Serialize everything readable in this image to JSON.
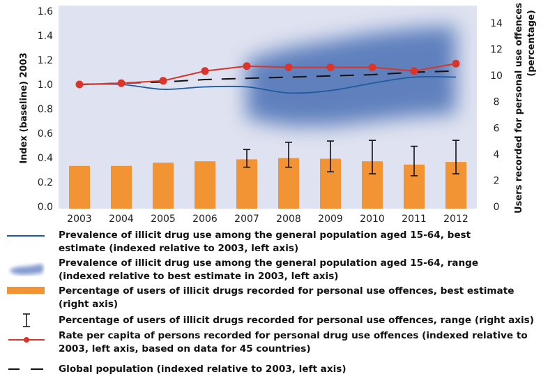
{
  "chart_data": {
    "type": "bar",
    "title": "",
    "categories": [
      "2003",
      "2004",
      "2005",
      "2006",
      "2007",
      "2008",
      "2009",
      "2010",
      "2011",
      "2012"
    ],
    "xlabel": "",
    "ylabel": "Index (baseline) 2003",
    "y2label": "Users recorded for personal use offences (percentage)",
    "y2label_lines": [
      "Users recorded for personal use offences",
      "(percentage)"
    ],
    "ylim": [
      0,
      1.6
    ],
    "yticks": [
      "0.0",
      "0.2",
      "0.4",
      "0.6",
      "0.8",
      "1.0",
      "1.2",
      "1.4",
      "1.6"
    ],
    "y2lim": [
      0,
      15
    ],
    "y2ticks": [
      "0",
      "2",
      "4",
      "6",
      "8",
      "10",
      "12",
      "14"
    ],
    "grid": false,
    "legend_position": "bottom",
    "series": [
      {
        "name": "Prevalence of illicit drug use among the general population aged 15-64, best estimate (indexed relative to 2003, left axis)",
        "type": "line",
        "axis": "left",
        "color": "#1f5a9e",
        "values": [
          1.0,
          1.0,
          0.96,
          0.98,
          0.98,
          0.93,
          0.95,
          1.01,
          1.06,
          1.06
        ]
      },
      {
        "name": "Prevalence of illicit drug use among the general population aged 15-64, range (indexed relative to best estimate in 2003, left axis)",
        "type": "area",
        "axis": "left",
        "color": "#4a6fb5",
        "lower": [
          null,
          null,
          null,
          null,
          0.72,
          0.66,
          0.66,
          0.7,
          0.74,
          0.76
        ],
        "upper": [
          null,
          null,
          null,
          null,
          1.2,
          1.3,
          1.36,
          1.42,
          1.46,
          1.48
        ]
      },
      {
        "name": "Percentage of users of illicit drugs recorded for personal use offences, best estimate (right axis)",
        "type": "bar",
        "axis": "right",
        "color": "#f29433",
        "values": [
          3.1,
          3.1,
          3.35,
          3.45,
          3.6,
          3.7,
          3.65,
          3.45,
          3.2,
          3.4
        ]
      },
      {
        "name": "Percentage of users of illicit drugs recorded for personal use offences, range (right axis)",
        "type": "errorbar",
        "axis": "right",
        "color": "#111111",
        "low": [
          null,
          null,
          null,
          null,
          3.0,
          3.0,
          2.65,
          2.5,
          2.35,
          2.5
        ],
        "high": [
          null,
          null,
          null,
          null,
          4.35,
          4.9,
          5.0,
          5.05,
          4.6,
          5.05
        ]
      },
      {
        "name": "Rate per capita of persons recorded for personal drug use offences (indexed relative to 2003, left axis, based on data for 45 countries)",
        "type": "line",
        "axis": "left",
        "color": "#d9352a",
        "marker": "circle",
        "values": [
          1.0,
          1.01,
          1.03,
          1.11,
          1.15,
          1.14,
          1.14,
          1.14,
          1.11,
          1.17
        ]
      },
      {
        "name": "Global population (indexed relative to 2003, left axis)",
        "type": "line",
        "axis": "left",
        "color": "#111111",
        "dash": true,
        "values": [
          1.0,
          1.01,
          1.02,
          1.04,
          1.05,
          1.06,
          1.07,
          1.08,
          1.1,
          1.11
        ]
      }
    ]
  },
  "colors": {
    "plot_background": "#dfe2f0",
    "bar": "#f29433",
    "prevalence_line": "#1f5a9e",
    "range_blob": "#4a6fb5",
    "rate_line": "#d9352a",
    "population_line": "#111111"
  },
  "legend": {
    "items": [
      {
        "icon": "solid-blue-line-icon",
        "text": "Prevalence of illicit drug use among the general population aged 15-64, best\nestimate (indexed relative to 2003, left axis)"
      },
      {
        "icon": "blue-blur-range-icon",
        "text": "Prevalence of illicit drug use among the general population aged 15-64, range\n(indexed relative to best estimate in 2003, left axis)"
      },
      {
        "icon": "orange-bar-icon",
        "text": "Percentage of users of illicit drugs recorded for personal use offences, best estimate\n(right axis)"
      },
      {
        "icon": "error-bar-icon",
        "text": "Percentage of users of illicit drugs recorded for personal use offences, range (right axis)"
      },
      {
        "icon": "red-line-dot-icon",
        "text": "Rate per capita of persons recorded for personal drug use offences (indexed relative to\n2003, left axis, based on data for 45 countries)"
      },
      {
        "icon": "dashed-line-icon",
        "text": "Global population (indexed relative to 2003, left axis)"
      }
    ]
  }
}
